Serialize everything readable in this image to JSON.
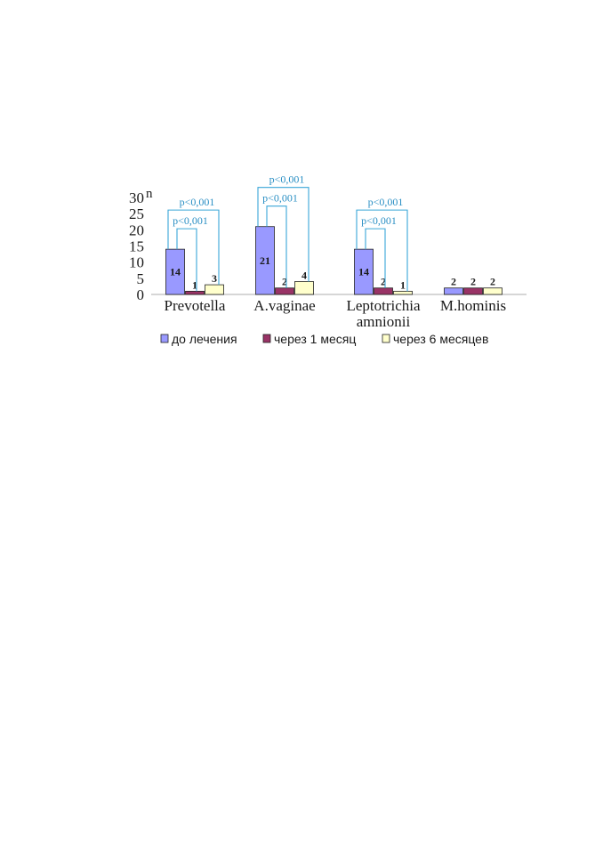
{
  "chart_data": {
    "type": "bar",
    "ylabel": "n",
    "ylim": [
      0,
      30
    ],
    "yticks": [
      0,
      5,
      10,
      15,
      20,
      25,
      30
    ],
    "categories": [
      [
        "Prevotella"
      ],
      [
        "A.vaginae"
      ],
      [
        "Leptotrichia",
        "amnionii"
      ],
      [
        "M.hominis"
      ]
    ],
    "series": [
      {
        "name": "до лечения",
        "color": "#9999ff",
        "values": [
          14,
          21,
          14,
          2
        ]
      },
      {
        "name": "через 1 месяц",
        "color": "#993366",
        "values": [
          1,
          2,
          2,
          2
        ]
      },
      {
        "name": "через 6 месяцев",
        "color": "#ffffcc",
        "values": [
          3,
          4,
          1,
          2
        ]
      }
    ],
    "annotations": [
      {
        "category": 0,
        "from_series": 0,
        "to_series": 1,
        "text": "p<0,001"
      },
      {
        "category": 0,
        "from_series": 0,
        "to_series": 2,
        "text": "p<0,001"
      },
      {
        "category": 1,
        "from_series": 0,
        "to_series": 1,
        "text": "p<0,001"
      },
      {
        "category": 1,
        "from_series": 0,
        "to_series": 2,
        "text": "p<0,001"
      },
      {
        "category": 2,
        "from_series": 0,
        "to_series": 1,
        "text": "p<0,001"
      },
      {
        "category": 2,
        "from_series": 0,
        "to_series": 2,
        "text": "p<0,001"
      }
    ],
    "legend_position": "bottom",
    "grid": false
  }
}
